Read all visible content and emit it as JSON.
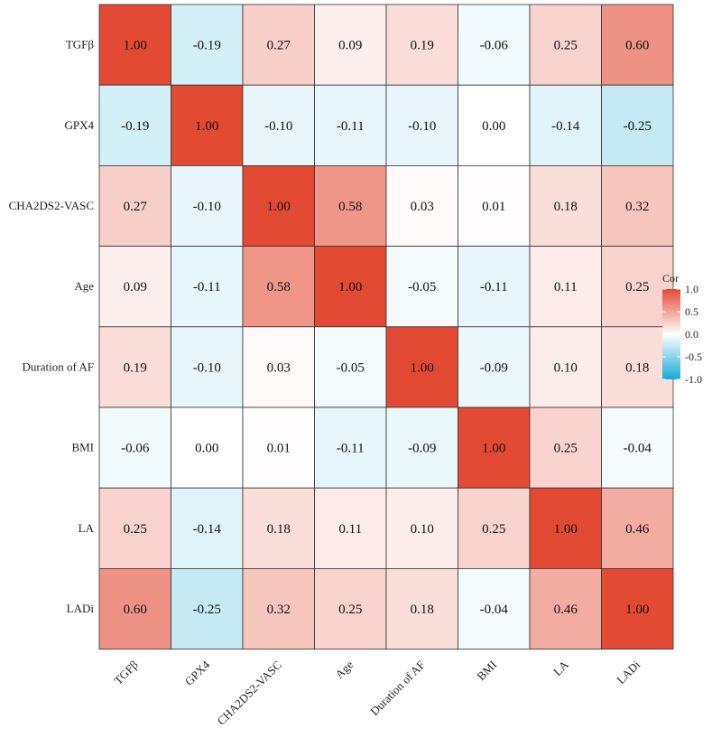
{
  "chart_data": {
    "type": "heatmap",
    "variables": [
      "TGFβ",
      "GPX4",
      "CHA2DS2-VASC",
      "Age",
      "Duration of AF",
      "BMI",
      "LA",
      "LADi"
    ],
    "matrix": [
      [
        1.0,
        -0.19,
        0.27,
        0.09,
        0.19,
        -0.06,
        0.25,
        0.6
      ],
      [
        -0.19,
        1.0,
        -0.1,
        -0.11,
        -0.1,
        0.0,
        -0.14,
        -0.25
      ],
      [
        0.27,
        -0.1,
        1.0,
        0.58,
        0.03,
        0.01,
        0.18,
        0.32
      ],
      [
        0.09,
        -0.11,
        0.58,
        1.0,
        -0.05,
        -0.11,
        0.11,
        0.25
      ],
      [
        0.19,
        -0.1,
        0.03,
        -0.05,
        1.0,
        -0.09,
        0.1,
        0.18
      ],
      [
        -0.06,
        0.0,
        0.01,
        -0.11,
        -0.09,
        1.0,
        0.25,
        -0.04
      ],
      [
        0.25,
        -0.14,
        0.18,
        0.11,
        0.1,
        0.25,
        1.0,
        0.46
      ],
      [
        0.6,
        -0.25,
        0.32,
        0.25,
        0.18,
        -0.04,
        0.46,
        1.0
      ]
    ],
    "value_format": "2 decimals",
    "legend": {
      "title": "Cor",
      "ticks": [
        1.0,
        0.5,
        0.0,
        -0.5,
        -1.0
      ],
      "tick_labels": [
        "1.0",
        "0.5",
        "0.0",
        "-0.5",
        "-1.0"
      ],
      "range": [
        -1,
        1
      ],
      "position": "right"
    },
    "colors": {
      "high": "#E34A33",
      "mid": "#FFFFFF",
      "low": "#18A9D4",
      "border": "#333333"
    }
  }
}
